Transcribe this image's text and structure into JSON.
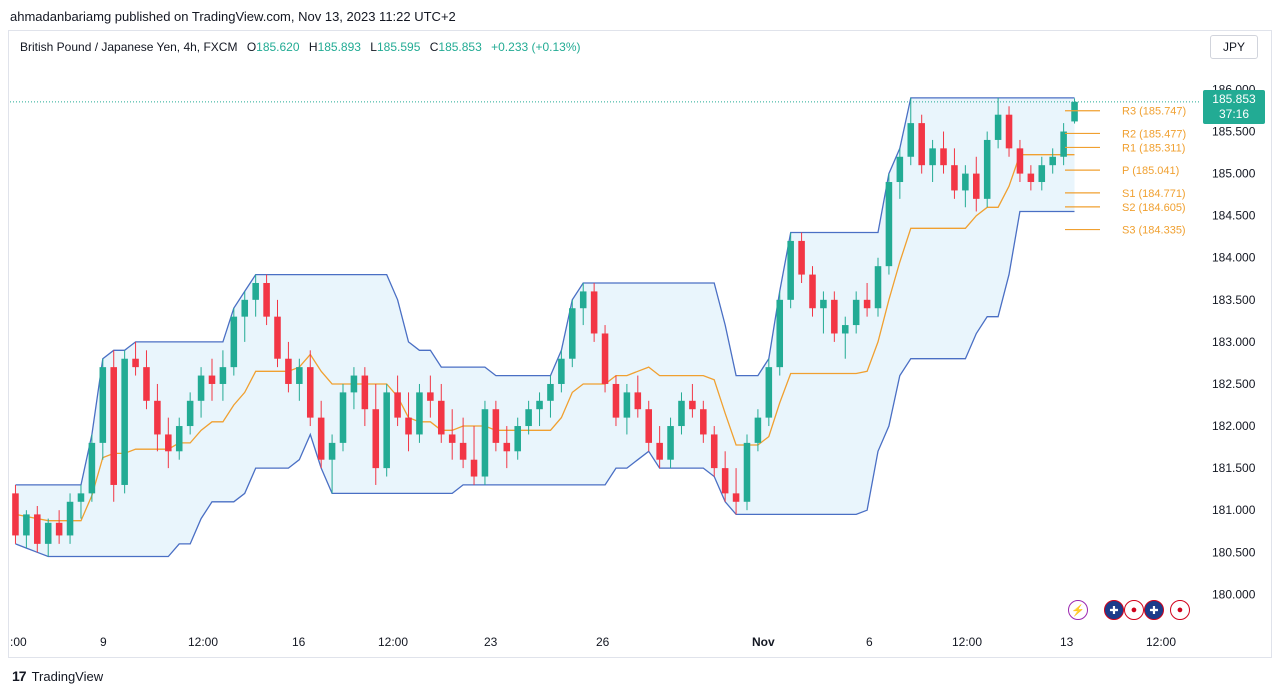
{
  "publish_line": "ahmadanbariamg published on TradingView.com, Nov 13, 2023 11:22 UTC+2",
  "legend": {
    "symbol": "British Pound / Japanese Yen, 4h, FXCM",
    "open_label": "O",
    "open": "185.620",
    "high_label": "H",
    "high": "185.893",
    "low_label": "L",
    "low": "185.595",
    "close_label": "C",
    "close": "185.853",
    "change": "+0.233 (+0.13%)"
  },
  "currency_button": "JPY",
  "price_badge": {
    "price": "185.853",
    "countdown": "37:16"
  },
  "footer": {
    "logo": "17",
    "brand": "TradingView"
  },
  "icons": [
    "lightning-icon",
    "uk-flag-icon",
    "uk-flag-icon",
    "japan-flag-icon",
    "japan-flag-icon"
  ],
  "colors": {
    "up": "#22ab94",
    "down": "#f23645",
    "band": "#4a6fc4",
    "baseline": "#f0a030",
    "band_fill": "#dbeefa",
    "pivot": "#f0a030"
  },
  "chart_data": {
    "type": "candlestick",
    "ylim": [
      179.6,
      186.35
    ],
    "y_ticks": [
      180.0,
      180.5,
      181.0,
      181.5,
      182.0,
      182.5,
      183.0,
      183.5,
      184.0,
      184.5,
      185.0,
      185.5,
      186.0
    ],
    "y_tick_labels": [
      "180.000",
      "180.500",
      "181.000",
      "181.500",
      "182.000",
      "182.500",
      "183.000",
      "183.500",
      "184.000",
      "184.500",
      "185.000",
      "185.500",
      "186.000"
    ],
    "x_tick_labels": [
      ":00",
      "9",
      "12:00",
      "16",
      "12:00",
      "23",
      "26",
      "Nov",
      "6",
      "12:00",
      "13",
      "12:00"
    ],
    "last_price": 185.853,
    "pivots": [
      {
        "label": "R3 (185.747)",
        "value": 185.747
      },
      {
        "label": "R2 (185.477)",
        "value": 185.477
      },
      {
        "label": "R1 (185.311)",
        "value": 185.311
      },
      {
        "label": "P (185.041)",
        "value": 185.041
      },
      {
        "label": "S1 (184.771)",
        "value": 184.771
      },
      {
        "label": "S2 (184.605)",
        "value": 184.605
      },
      {
        "label": "S3 (184.335)",
        "value": 184.335
      }
    ],
    "candles": [
      [
        181.2,
        181.3,
        180.6,
        180.7
      ],
      [
        180.7,
        181.0,
        180.55,
        180.95
      ],
      [
        180.95,
        181.05,
        180.5,
        180.6
      ],
      [
        180.6,
        180.9,
        180.45,
        180.85
      ],
      [
        180.85,
        181.0,
        180.6,
        180.7
      ],
      [
        180.7,
        181.2,
        180.6,
        181.1
      ],
      [
        181.1,
        181.3,
        180.9,
        181.2
      ],
      [
        181.2,
        181.9,
        181.1,
        181.8
      ],
      [
        181.8,
        182.8,
        181.6,
        182.7
      ],
      [
        182.7,
        182.9,
        181.1,
        181.3
      ],
      [
        181.3,
        182.9,
        181.2,
        182.8
      ],
      [
        182.8,
        183.0,
        182.6,
        182.7
      ],
      [
        182.7,
        182.9,
        182.2,
        182.3
      ],
      [
        182.3,
        182.5,
        181.7,
        181.9
      ],
      [
        181.9,
        182.1,
        181.5,
        181.7
      ],
      [
        181.7,
        182.1,
        181.6,
        182.0
      ],
      [
        182.0,
        182.4,
        181.9,
        182.3
      ],
      [
        182.3,
        182.7,
        182.1,
        182.6
      ],
      [
        182.6,
        182.8,
        182.3,
        182.5
      ],
      [
        182.5,
        182.9,
        182.3,
        182.7
      ],
      [
        182.7,
        183.4,
        182.6,
        183.3
      ],
      [
        183.3,
        183.6,
        183.0,
        183.5
      ],
      [
        183.5,
        183.8,
        183.3,
        183.7
      ],
      [
        183.7,
        183.8,
        183.2,
        183.3
      ],
      [
        183.3,
        183.5,
        182.7,
        182.8
      ],
      [
        182.8,
        183.0,
        182.4,
        182.5
      ],
      [
        182.5,
        182.8,
        182.3,
        182.7
      ],
      [
        182.7,
        182.9,
        182.0,
        182.1
      ],
      [
        182.1,
        182.3,
        181.5,
        181.6
      ],
      [
        181.6,
        181.9,
        181.2,
        181.8
      ],
      [
        181.8,
        182.5,
        181.7,
        182.4
      ],
      [
        182.4,
        182.7,
        182.2,
        182.6
      ],
      [
        182.6,
        182.7,
        182.0,
        182.2
      ],
      [
        182.2,
        182.5,
        181.3,
        181.5
      ],
      [
        181.5,
        182.5,
        181.4,
        182.4
      ],
      [
        182.4,
        182.6,
        182.0,
        182.1
      ],
      [
        182.1,
        182.4,
        181.7,
        181.9
      ],
      [
        181.9,
        182.5,
        181.8,
        182.4
      ],
      [
        182.4,
        182.6,
        182.1,
        182.3
      ],
      [
        182.3,
        182.5,
        181.8,
        181.9
      ],
      [
        181.9,
        182.2,
        181.6,
        181.8
      ],
      [
        181.8,
        182.1,
        181.5,
        181.6
      ],
      [
        181.6,
        182.0,
        181.3,
        181.4
      ],
      [
        181.4,
        182.3,
        181.3,
        182.2
      ],
      [
        182.2,
        182.3,
        181.7,
        181.8
      ],
      [
        181.8,
        182.0,
        181.5,
        181.7
      ],
      [
        181.7,
        182.1,
        181.6,
        182.0
      ],
      [
        182.0,
        182.3,
        181.9,
        182.2
      ],
      [
        182.2,
        182.4,
        182.0,
        182.3
      ],
      [
        182.3,
        182.6,
        182.1,
        182.5
      ],
      [
        182.5,
        182.9,
        182.4,
        182.8
      ],
      [
        182.8,
        183.5,
        182.7,
        183.4
      ],
      [
        183.4,
        183.7,
        183.2,
        183.6
      ],
      [
        183.6,
        183.7,
        183.0,
        183.1
      ],
      [
        183.1,
        183.2,
        182.4,
        182.5
      ],
      [
        182.5,
        182.6,
        182.0,
        182.1
      ],
      [
        182.1,
        182.5,
        181.9,
        182.4
      ],
      [
        182.4,
        182.6,
        182.1,
        182.2
      ],
      [
        182.2,
        182.3,
        181.7,
        181.8
      ],
      [
        181.8,
        182.0,
        181.5,
        181.6
      ],
      [
        181.6,
        182.1,
        181.5,
        182.0
      ],
      [
        182.0,
        182.4,
        181.9,
        182.3
      ],
      [
        182.3,
        182.5,
        182.1,
        182.2
      ],
      [
        182.2,
        182.3,
        181.8,
        181.9
      ],
      [
        181.9,
        182.0,
        181.4,
        181.5
      ],
      [
        181.5,
        181.7,
        181.1,
        181.2
      ],
      [
        181.2,
        181.5,
        180.95,
        181.1
      ],
      [
        181.1,
        181.9,
        181.0,
        181.8
      ],
      [
        181.8,
        182.2,
        181.7,
        182.1
      ],
      [
        182.1,
        182.8,
        182.0,
        182.7
      ],
      [
        182.7,
        183.6,
        182.6,
        183.5
      ],
      [
        183.5,
        184.3,
        183.4,
        184.2
      ],
      [
        184.2,
        184.3,
        183.7,
        183.8
      ],
      [
        183.8,
        183.9,
        183.3,
        183.4
      ],
      [
        183.4,
        183.6,
        183.1,
        183.5
      ],
      [
        183.5,
        183.6,
        183.0,
        183.1
      ],
      [
        183.1,
        183.3,
        182.8,
        183.2
      ],
      [
        183.2,
        183.6,
        183.1,
        183.5
      ],
      [
        183.5,
        183.7,
        183.3,
        183.4
      ],
      [
        183.4,
        184.0,
        183.3,
        183.9
      ],
      [
        183.9,
        185.0,
        183.8,
        184.9
      ],
      [
        184.9,
        185.3,
        184.7,
        185.2
      ],
      [
        185.2,
        185.9,
        185.1,
        185.6
      ],
      [
        185.6,
        185.7,
        185.0,
        185.1
      ],
      [
        185.1,
        185.4,
        184.9,
        185.3
      ],
      [
        185.3,
        185.5,
        185.0,
        185.1
      ],
      [
        185.1,
        185.3,
        184.7,
        184.8
      ],
      [
        184.8,
        185.1,
        184.6,
        185.0
      ],
      [
        185.0,
        185.2,
        184.55,
        184.7
      ],
      [
        184.7,
        185.5,
        184.6,
        185.4
      ],
      [
        185.4,
        185.9,
        185.3,
        185.7
      ],
      [
        185.7,
        185.8,
        185.2,
        185.3
      ],
      [
        185.3,
        185.4,
        184.9,
        185.0
      ],
      [
        185.0,
        185.1,
        184.8,
        184.9
      ],
      [
        184.9,
        185.2,
        184.8,
        185.1
      ],
      [
        185.1,
        185.3,
        185.0,
        185.2
      ],
      [
        185.2,
        185.6,
        185.1,
        185.5
      ],
      [
        185.62,
        185.893,
        185.595,
        185.853
      ]
    ]
  }
}
